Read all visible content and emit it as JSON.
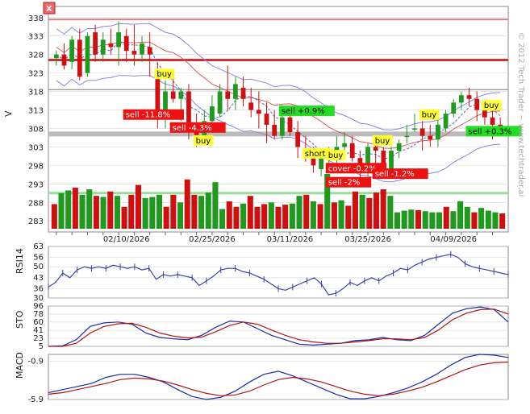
{
  "close_glyph": "X",
  "watermark": "© 2012 Tech Trader ~ www.techtrader.ai",
  "colors": {
    "up": "#1f9a1f",
    "down": "#d01010",
    "buy_bg": "#ffff33",
    "sell_bg": "#ee1111",
    "sell_green_bg": "#22dd22",
    "pane_border": "#888888",
    "grid": "#d8d8d8"
  },
  "chart_data": [
    {
      "type": "candlestick",
      "ylabel": "V",
      "ylim": [
        280,
        341
      ],
      "yticks": [
        338,
        333,
        328,
        323,
        318,
        313,
        308,
        303,
        298,
        293,
        288,
        283
      ],
      "date_labels": [
        "02/10/2026",
        "02/25/2026",
        "03/11/2026",
        "03/25/2026",
        "04/09/2026"
      ],
      "date_label_index": [
        9,
        20,
        30,
        40,
        51
      ],
      "candles": [
        [
          327,
          329,
          325,
          328
        ],
        [
          328,
          331,
          324,
          325
        ],
        [
          326,
          333,
          324,
          332
        ],
        [
          332,
          335,
          321,
          322
        ],
        [
          323,
          334,
          322,
          333
        ],
        [
          334,
          336,
          326,
          328
        ],
        [
          328,
          334,
          326,
          332
        ],
        [
          331,
          335,
          328,
          330
        ],
        [
          330,
          337,
          325,
          334
        ],
        [
          333,
          335,
          326,
          329
        ],
        [
          329,
          336,
          325,
          328
        ],
        [
          328,
          333,
          326,
          331
        ],
        [
          330,
          334,
          322,
          328
        ],
        [
          324,
          326,
          308,
          311
        ],
        [
          311,
          321,
          308,
          318
        ],
        [
          318,
          322,
          315,
          316
        ],
        [
          316,
          319,
          310,
          318
        ],
        [
          318,
          320,
          305,
          307
        ],
        [
          307,
          312,
          303,
          306
        ],
        [
          306,
          313,
          304,
          310
        ],
        [
          310,
          317,
          308,
          314
        ],
        [
          312,
          320,
          311,
          318
        ],
        [
          318,
          325,
          313,
          316
        ],
        [
          316,
          322,
          313,
          320
        ],
        [
          319,
          322,
          314,
          316
        ],
        [
          315,
          319,
          311,
          313
        ],
        [
          313,
          318,
          308,
          312
        ],
        [
          312,
          315,
          304,
          309
        ],
        [
          309,
          313,
          305,
          306
        ],
        [
          306,
          312,
          305,
          311
        ],
        [
          311,
          314,
          306,
          307
        ],
        [
          307,
          310,
          300,
          303
        ],
        [
          302,
          306,
          299,
          300
        ],
        [
          300,
          303,
          296,
          298
        ],
        [
          297,
          302,
          295,
          300
        ],
        [
          300,
          303,
          296,
          301
        ],
        [
          300,
          306,
          298,
          303
        ],
        [
          303,
          307,
          301,
          304
        ],
        [
          304,
          306,
          299,
          300
        ],
        [
          300,
          302,
          294,
          296
        ],
        [
          296,
          304,
          295,
          303
        ],
        [
          303,
          305,
          298,
          302
        ],
        [
          302,
          303,
          297,
          298
        ],
        [
          297,
          303,
          295,
          302
        ],
        [
          302,
          305,
          300,
          304
        ],
        [
          306,
          309,
          304,
          306
        ],
        [
          308,
          312,
          307,
          308
        ],
        [
          308,
          310,
          302,
          306
        ],
        [
          306,
          309,
          303,
          305
        ],
        [
          305,
          311,
          303,
          309
        ],
        [
          308,
          313,
          307,
          312
        ],
        [
          312,
          316,
          311,
          315
        ],
        [
          315,
          318,
          313,
          317
        ],
        [
          317,
          319,
          314,
          316
        ],
        [
          316,
          318,
          310,
          313
        ],
        [
          313,
          315,
          309,
          311
        ],
        [
          311,
          313,
          305,
          309
        ],
        [
          309,
          311,
          306,
          308
        ]
      ],
      "volume": [
        [
          "d",
          0.45
        ],
        [
          "u",
          0.65
        ],
        [
          "u",
          0.7
        ],
        [
          "d",
          0.75
        ],
        [
          "u",
          0.62
        ],
        [
          "u",
          0.72
        ],
        [
          "d",
          0.6
        ],
        [
          "u",
          0.58
        ],
        [
          "d",
          0.68
        ],
        [
          "u",
          0.6
        ],
        [
          "d",
          0.4
        ],
        [
          "d",
          0.62
        ],
        [
          "d",
          0.8
        ],
        [
          "u",
          0.56
        ],
        [
          "u",
          0.58
        ],
        [
          "u",
          0.62
        ],
        [
          "d",
          0.4
        ],
        [
          "d",
          0.62
        ],
        [
          "u",
          0.48
        ],
        [
          "d",
          0.9
        ],
        [
          "d",
          0.62
        ],
        [
          "u",
          0.6
        ],
        [
          "u",
          0.66
        ],
        [
          "u",
          0.85
        ],
        [
          "u",
          0.36
        ],
        [
          "d",
          0.5
        ],
        [
          "d",
          0.4
        ],
        [
          "u",
          0.46
        ],
        [
          "d",
          0.6
        ],
        [
          "d",
          0.4
        ],
        [
          "d",
          0.45
        ],
        [
          "u",
          0.48
        ],
        [
          "d",
          0.4
        ],
        [
          "d",
          0.44
        ],
        [
          "u",
          0.46
        ],
        [
          "u",
          0.6
        ],
        [
          "d",
          0.62
        ],
        [
          "u",
          0.5
        ],
        [
          "d",
          0.45
        ],
        [
          "u",
          1.0
        ],
        [
          "d",
          0.48
        ],
        [
          "u",
          0.52
        ],
        [
          "d",
          0.42
        ],
        [
          "d",
          0.68
        ],
        [
          "u",
          0.62
        ],
        [
          "d",
          0.56
        ],
        [
          "d",
          0.66
        ],
        [
          "d",
          0.72
        ],
        [
          "u",
          0.6
        ],
        [
          "u",
          0.3
        ],
        [
          "u",
          0.33
        ],
        [
          "u",
          0.35
        ],
        [
          "d",
          0.34
        ],
        [
          "u",
          0.32
        ],
        [
          "u",
          0.3
        ],
        [
          "u",
          0.3
        ],
        [
          "d",
          0.4
        ],
        [
          "u",
          0.32
        ],
        [
          "u",
          0.5
        ],
        [
          "u",
          0.4
        ],
        [
          "d",
          0.3
        ],
        [
          "u",
          0.38
        ],
        [
          "u",
          0.33
        ],
        [
          "u",
          0.3
        ],
        [
          "d",
          0.28
        ]
      ],
      "signals": [
        {
          "i": 13,
          "text": "buy",
          "kind": "buy",
          "y": 322
        },
        {
          "i": 9,
          "text": "sell -11.8%",
          "kind": "sell",
          "y": 311
        },
        {
          "i": 15,
          "text": "sell -4.3%",
          "kind": "sell",
          "y": 307.5
        },
        {
          "i": 18,
          "text": "buy",
          "kind": "buy",
          "y": 304
        },
        {
          "i": 29,
          "text": "sell +0.9%",
          "kind": "sellg",
          "y": 312
        },
        {
          "i": 32,
          "text": "short",
          "kind": "buy",
          "y": 300.5
        },
        {
          "i": 35,
          "text": "buy",
          "kind": "buy",
          "y": 300
        },
        {
          "i": 35,
          "text": "cover -0.2%",
          "kind": "sell",
          "y": 296.5
        },
        {
          "i": 35,
          "text": "sell -2%",
          "kind": "sell",
          "y": 292.7
        },
        {
          "i": 41,
          "text": "buy",
          "kind": "buy",
          "y": 304
        },
        {
          "i": 41,
          "text": "sell -1.2%",
          "kind": "sell",
          "y": 295
        },
        {
          "i": 47,
          "text": "buy",
          "kind": "buy",
          "y": 311
        },
        {
          "i": 55,
          "text": "buy",
          "kind": "buy",
          "y": 313.5
        },
        {
          "i": 53,
          "text": "sell +0.3%",
          "kind": "sellg",
          "y": 306.5
        }
      ],
      "hlines": [
        {
          "y": 337.5,
          "color": "#e08080",
          "w": 2
        },
        {
          "y": 326.5,
          "color": "#d03030",
          "w": 3
        },
        {
          "y": 318.5,
          "color": "#777777",
          "w": 1
        },
        {
          "y": 306.5,
          "color": "#bbbbbb",
          "w": 6
        },
        {
          "y": 290.5,
          "color": "#99dd99",
          "w": 3
        }
      ]
    },
    {
      "type": "line",
      "ylabel": "RSI14",
      "yticks": [
        63,
        56,
        50,
        43,
        36,
        30
      ],
      "ylim": [
        30,
        63
      ],
      "values": [
        37,
        40,
        46,
        43,
        48,
        50,
        49,
        50,
        49,
        51,
        50,
        49,
        50,
        48,
        49,
        42,
        45,
        44,
        45,
        44,
        43,
        38,
        41,
        44,
        48,
        49,
        49,
        47,
        46,
        44,
        42,
        39,
        36,
        35,
        37,
        39,
        41,
        43,
        39,
        32,
        33,
        36,
        40,
        38,
        41,
        43,
        41,
        44,
        46,
        49,
        48,
        51,
        53,
        55,
        56,
        57,
        58,
        56,
        52,
        50,
        49,
        48,
        47,
        46,
        45
      ]
    },
    {
      "type": "line",
      "ylabel": "STO",
      "yticks": [
        96,
        78,
        60,
        41,
        23,
        5
      ],
      "ylim": [
        5,
        96
      ],
      "series": [
        {
          "color": "#1a2aa8",
          "values": [
            5,
            6,
            20,
            50,
            58,
            60,
            55,
            35,
            25,
            22,
            20,
            30,
            48,
            62,
            60,
            45,
            30,
            20,
            10,
            8,
            10,
            12,
            18,
            20,
            25,
            20,
            18,
            30,
            55,
            80,
            90,
            94,
            88,
            60
          ]
        },
        {
          "color": "#b01515",
          "values": [
            5,
            5,
            12,
            35,
            50,
            56,
            57,
            48,
            35,
            28,
            24,
            26,
            38,
            52,
            60,
            55,
            42,
            30,
            20,
            15,
            12,
            12,
            15,
            18,
            22,
            22,
            20,
            25,
            42,
            65,
            80,
            88,
            89,
            78
          ]
        }
      ]
    },
    {
      "type": "line",
      "ylabel": "MACD",
      "yticks": [
        -0.9,
        -5.9
      ],
      "ylim": [
        -5.9,
        0
      ],
      "series": [
        {
          "color": "#1a2aa8",
          "values": [
            -5.0,
            -4.6,
            -4.2,
            -3.8,
            -3.0,
            -2.6,
            -2.6,
            -3.0,
            -3.6,
            -4.6,
            -5.5,
            -5.9,
            -5.6,
            -4.8,
            -3.6,
            -2.6,
            -2.2,
            -2.8,
            -3.6,
            -4.4,
            -5.2,
            -5.8,
            -5.8,
            -5.5,
            -5.0,
            -4.4,
            -3.6,
            -2.6,
            -1.4,
            -0.4,
            0.0,
            -0.1,
            -0.4
          ]
        },
        {
          "color": "#b01515",
          "values": [
            -5.2,
            -5.0,
            -4.6,
            -4.2,
            -3.8,
            -3.3,
            -3.1,
            -3.2,
            -3.5,
            -4.0,
            -4.6,
            -5.1,
            -5.4,
            -5.3,
            -4.8,
            -4.0,
            -3.3,
            -3.0,
            -3.2,
            -3.6,
            -4.2,
            -4.8,
            -5.2,
            -5.4,
            -5.2,
            -4.8,
            -4.3,
            -3.6,
            -2.8,
            -2.0,
            -1.4,
            -1.1,
            -1.0
          ]
        }
      ]
    }
  ]
}
